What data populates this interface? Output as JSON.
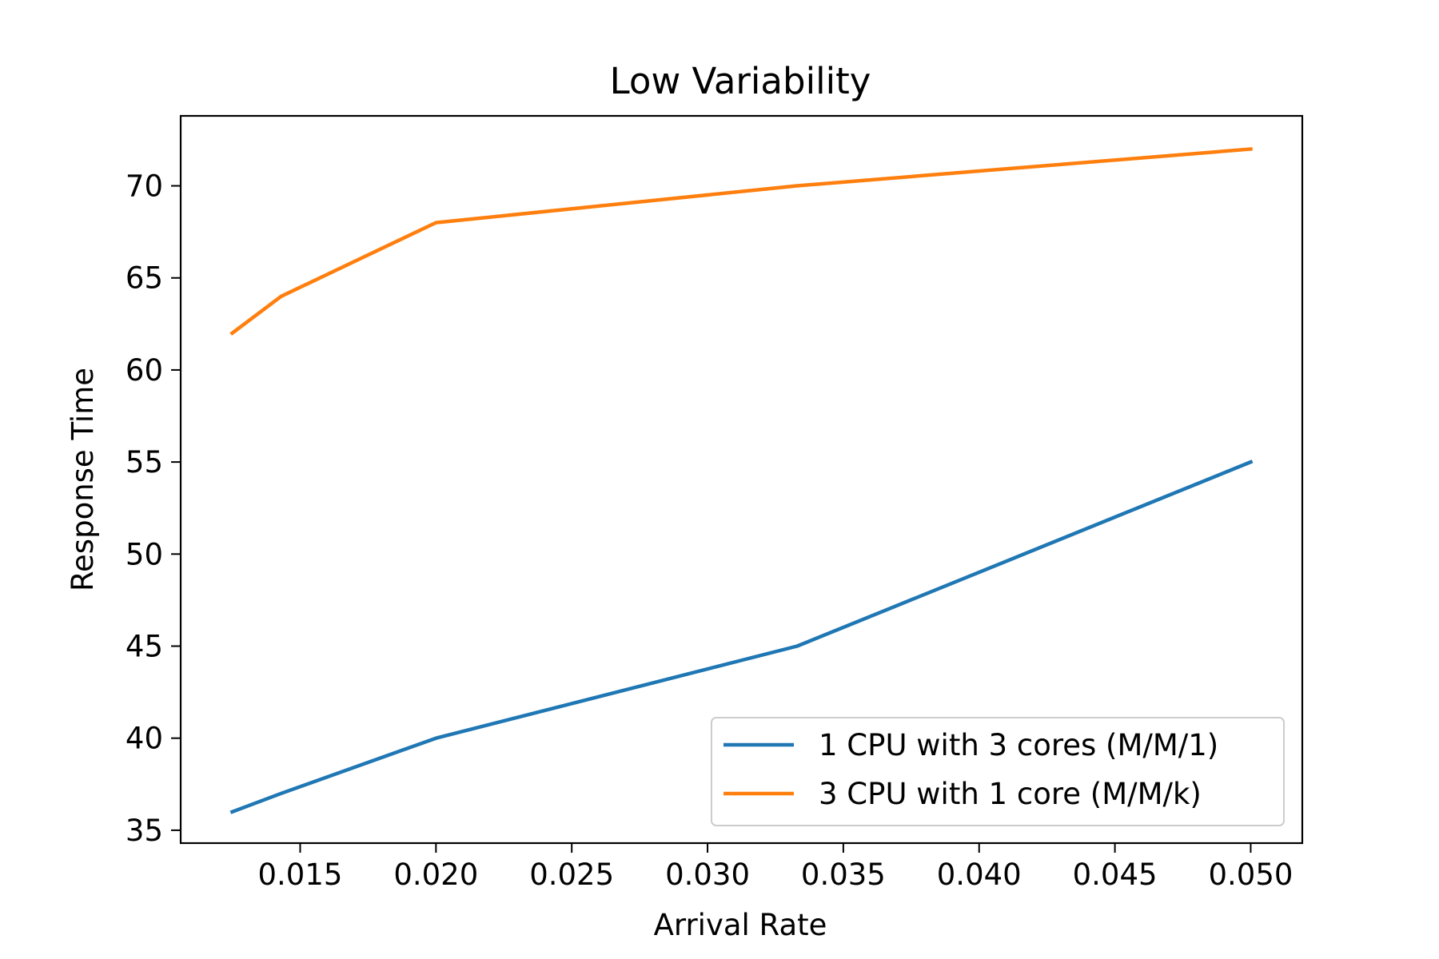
{
  "chart_data": {
    "type": "line",
    "title": "Low Variability",
    "xlabel": "Arrival Rate",
    "ylabel": "Response Time",
    "xlim": [
      0.0106,
      0.0519
    ],
    "ylim": [
      34.3,
      73.8
    ],
    "xticks": [
      0.015,
      0.02,
      0.025,
      0.03,
      0.035,
      0.04,
      0.045,
      0.05
    ],
    "xtick_labels": [
      "0.015",
      "0.020",
      "0.025",
      "0.030",
      "0.035",
      "0.040",
      "0.045",
      "0.050"
    ],
    "yticks": [
      35,
      40,
      45,
      50,
      55,
      60,
      65,
      70
    ],
    "ytick_labels": [
      "35",
      "40",
      "45",
      "50",
      "55",
      "60",
      "65",
      "70"
    ],
    "grid": false,
    "legend_position": "lower-right",
    "series": [
      {
        "name": "1 CPU with 3 cores (M/M/1)",
        "color": "#1f77b4",
        "x": [
          0.0125,
          0.0143,
          0.02,
          0.0333,
          0.05
        ],
        "y": [
          36,
          37,
          40,
          45,
          55
        ]
      },
      {
        "name": "3 CPU with 1 core (M/M/k)",
        "color": "#ff7f0e",
        "x": [
          0.0125,
          0.0143,
          0.02,
          0.0333,
          0.05
        ],
        "y": [
          62,
          64,
          68,
          70,
          72
        ]
      }
    ]
  }
}
